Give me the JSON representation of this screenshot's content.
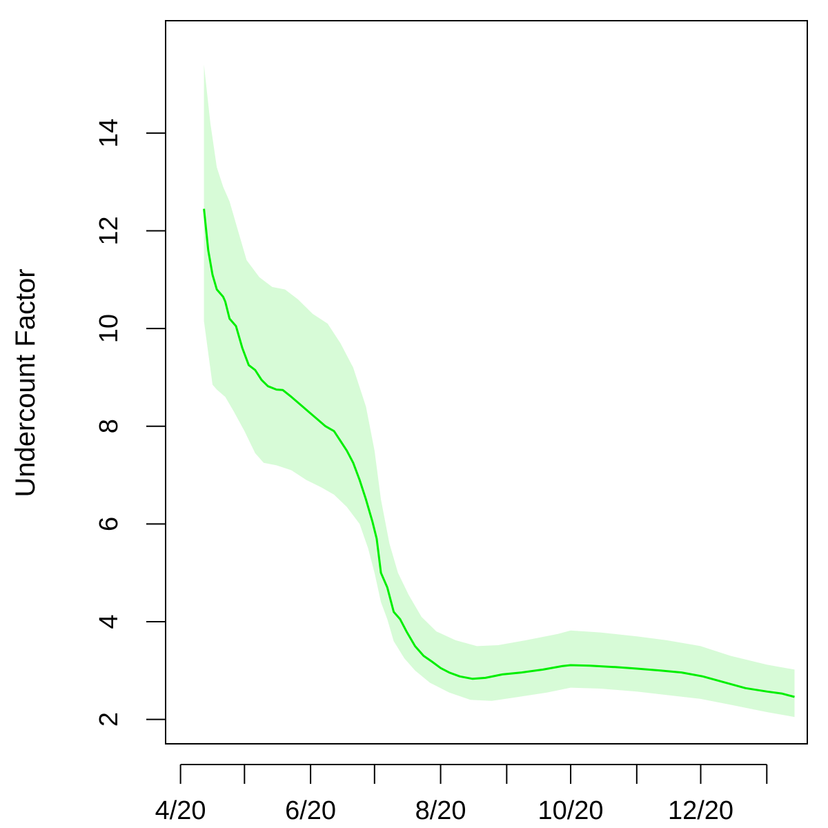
{
  "chart_data": {
    "type": "line",
    "title": "",
    "xlabel": "",
    "ylabel": "Undercount Factor",
    "ylim": [
      1.5,
      16.3
    ],
    "yticks": [
      2,
      4,
      6,
      8,
      10,
      12,
      14
    ],
    "ytick_labels": [
      "2",
      "4",
      "6",
      "8",
      "10",
      "12",
      "14"
    ],
    "xlim": [
      "2020-03-25",
      "2021-01-20"
    ],
    "xticks": [
      "2020-04-01",
      "2020-05-01",
      "2020-06-01",
      "2020-07-01",
      "2020-08-01",
      "2020-09-01",
      "2020-10-01",
      "2020-11-01",
      "2020-12-01",
      "2021-01-01"
    ],
    "xtick_labels": [
      "4/20",
      "",
      "6/20",
      "",
      "8/20",
      "",
      "10/20",
      "",
      "12/20",
      ""
    ],
    "grid": false,
    "legend": "none",
    "colors": {
      "line": "#00ee00",
      "band": "#d7fbd7"
    },
    "series": [
      {
        "values": [
          {
            "x": "2020-04-12",
            "y": 12.45
          },
          {
            "x": "2020-04-14",
            "y": 11.6
          },
          {
            "x": "2020-04-16",
            "y": 11.1
          },
          {
            "x": "2020-04-18",
            "y": 10.8
          },
          {
            "x": "2020-04-20",
            "y": 10.7
          },
          {
            "x": "2020-04-21",
            "y": 10.65
          },
          {
            "x": "2020-04-22",
            "y": 10.55
          },
          {
            "x": "2020-04-24",
            "y": 10.2
          },
          {
            "x": "2020-04-27",
            "y": 10.05
          },
          {
            "x": "2020-04-30",
            "y": 9.6
          },
          {
            "x": "2020-05-03",
            "y": 9.25
          },
          {
            "x": "2020-05-06",
            "y": 9.15
          },
          {
            "x": "2020-05-09",
            "y": 8.95
          },
          {
            "x": "2020-05-12",
            "y": 8.82
          },
          {
            "x": "2020-05-16",
            "y": 8.75
          },
          {
            "x": "2020-05-19",
            "y": 8.74
          },
          {
            "x": "2020-05-23",
            "y": 8.6
          },
          {
            "x": "2020-05-27",
            "y": 8.45
          },
          {
            "x": "2020-05-31",
            "y": 8.3
          },
          {
            "x": "2020-06-04",
            "y": 8.15
          },
          {
            "x": "2020-06-08",
            "y": 8.0
          },
          {
            "x": "2020-06-12",
            "y": 7.9
          },
          {
            "x": "2020-06-15",
            "y": 7.7
          },
          {
            "x": "2020-06-18",
            "y": 7.5
          },
          {
            "x": "2020-06-21",
            "y": 7.25
          },
          {
            "x": "2020-06-24",
            "y": 6.9
          },
          {
            "x": "2020-06-27",
            "y": 6.5
          },
          {
            "x": "2020-06-30",
            "y": 6.05
          },
          {
            "x": "2020-07-02",
            "y": 5.7
          },
          {
            "x": "2020-07-04",
            "y": 5.0
          },
          {
            "x": "2020-07-07",
            "y": 4.7
          },
          {
            "x": "2020-07-10",
            "y": 4.2
          },
          {
            "x": "2020-07-13",
            "y": 4.05
          },
          {
            "x": "2020-07-16",
            "y": 3.8
          },
          {
            "x": "2020-07-20",
            "y": 3.5
          },
          {
            "x": "2020-07-24",
            "y": 3.3
          },
          {
            "x": "2020-07-28",
            "y": 3.18
          },
          {
            "x": "2020-08-01",
            "y": 3.05
          },
          {
            "x": "2020-08-05",
            "y": 2.96
          },
          {
            "x": "2020-08-10",
            "y": 2.88
          },
          {
            "x": "2020-08-16",
            "y": 2.83
          },
          {
            "x": "2020-08-22",
            "y": 2.85
          },
          {
            "x": "2020-08-30",
            "y": 2.92
          },
          {
            "x": "2020-09-08",
            "y": 2.96
          },
          {
            "x": "2020-09-18",
            "y": 3.02
          },
          {
            "x": "2020-09-27",
            "y": 3.09
          },
          {
            "x": "2020-10-01",
            "y": 3.11
          },
          {
            "x": "2020-10-10",
            "y": 3.1
          },
          {
            "x": "2020-10-22",
            "y": 3.07
          },
          {
            "x": "2020-11-01",
            "y": 3.04
          },
          {
            "x": "2020-11-12",
            "y": 3.0
          },
          {
            "x": "2020-11-22",
            "y": 2.96
          },
          {
            "x": "2020-12-02",
            "y": 2.88
          },
          {
            "x": "2020-12-12",
            "y": 2.76
          },
          {
            "x": "2020-12-22",
            "y": 2.64
          },
          {
            "x": "2021-01-01",
            "y": 2.57
          },
          {
            "x": "2021-01-08",
            "y": 2.53
          },
          {
            "x": "2021-01-14",
            "y": 2.46
          }
        ],
        "lower": [
          {
            "x": "2020-04-12",
            "y": 10.15
          },
          {
            "x": "2020-04-14",
            "y": 9.5
          },
          {
            "x": "2020-04-16",
            "y": 8.85
          },
          {
            "x": "2020-04-18",
            "y": 8.75
          },
          {
            "x": "2020-04-22",
            "y": 8.6
          },
          {
            "x": "2020-04-26",
            "y": 8.3
          },
          {
            "x": "2020-05-01",
            "y": 7.9
          },
          {
            "x": "2020-05-06",
            "y": 7.45
          },
          {
            "x": "2020-05-10",
            "y": 7.25
          },
          {
            "x": "2020-05-16",
            "y": 7.2
          },
          {
            "x": "2020-05-23",
            "y": 7.1
          },
          {
            "x": "2020-05-30",
            "y": 6.9
          },
          {
            "x": "2020-06-06",
            "y": 6.75
          },
          {
            "x": "2020-06-12",
            "y": 6.6
          },
          {
            "x": "2020-06-18",
            "y": 6.35
          },
          {
            "x": "2020-06-24",
            "y": 6.0
          },
          {
            "x": "2020-06-28",
            "y": 5.5
          },
          {
            "x": "2020-07-01",
            "y": 5.0
          },
          {
            "x": "2020-07-04",
            "y": 4.4
          },
          {
            "x": "2020-07-07",
            "y": 4.05
          },
          {
            "x": "2020-07-10",
            "y": 3.6
          },
          {
            "x": "2020-07-15",
            "y": 3.25
          },
          {
            "x": "2020-07-20",
            "y": 3.0
          },
          {
            "x": "2020-07-27",
            "y": 2.75
          },
          {
            "x": "2020-08-05",
            "y": 2.55
          },
          {
            "x": "2020-08-15",
            "y": 2.4
          },
          {
            "x": "2020-08-25",
            "y": 2.38
          },
          {
            "x": "2020-09-05",
            "y": 2.45
          },
          {
            "x": "2020-09-20",
            "y": 2.55
          },
          {
            "x": "2020-10-01",
            "y": 2.65
          },
          {
            "x": "2020-10-15",
            "y": 2.63
          },
          {
            "x": "2020-11-01",
            "y": 2.57
          },
          {
            "x": "2020-11-15",
            "y": 2.5
          },
          {
            "x": "2020-12-01",
            "y": 2.42
          },
          {
            "x": "2020-12-15",
            "y": 2.3
          },
          {
            "x": "2021-01-01",
            "y": 2.15
          },
          {
            "x": "2021-01-14",
            "y": 2.05
          }
        ],
        "upper": [
          {
            "x": "2020-04-12",
            "y": 15.4
          },
          {
            "x": "2020-04-15",
            "y": 14.2
          },
          {
            "x": "2020-04-18",
            "y": 13.3
          },
          {
            "x": "2020-04-21",
            "y": 12.9
          },
          {
            "x": "2020-04-24",
            "y": 12.6
          },
          {
            "x": "2020-04-28",
            "y": 12.0
          },
          {
            "x": "2020-05-02",
            "y": 11.4
          },
          {
            "x": "2020-05-08",
            "y": 11.05
          },
          {
            "x": "2020-05-14",
            "y": 10.85
          },
          {
            "x": "2020-05-20",
            "y": 10.8
          },
          {
            "x": "2020-05-26",
            "y": 10.6
          },
          {
            "x": "2020-06-02",
            "y": 10.3
          },
          {
            "x": "2020-06-09",
            "y": 10.1
          },
          {
            "x": "2020-06-15",
            "y": 9.7
          },
          {
            "x": "2020-06-21",
            "y": 9.2
          },
          {
            "x": "2020-06-27",
            "y": 8.4
          },
          {
            "x": "2020-07-01",
            "y": 7.5
          },
          {
            "x": "2020-07-04",
            "y": 6.5
          },
          {
            "x": "2020-07-08",
            "y": 5.6
          },
          {
            "x": "2020-07-12",
            "y": 5.0
          },
          {
            "x": "2020-07-17",
            "y": 4.55
          },
          {
            "x": "2020-07-23",
            "y": 4.1
          },
          {
            "x": "2020-07-30",
            "y": 3.8
          },
          {
            "x": "2020-08-08",
            "y": 3.62
          },
          {
            "x": "2020-08-18",
            "y": 3.5
          },
          {
            "x": "2020-08-28",
            "y": 3.52
          },
          {
            "x": "2020-09-10",
            "y": 3.62
          },
          {
            "x": "2020-09-25",
            "y": 3.75
          },
          {
            "x": "2020-10-01",
            "y": 3.82
          },
          {
            "x": "2020-10-15",
            "y": 3.78
          },
          {
            "x": "2020-11-01",
            "y": 3.7
          },
          {
            "x": "2020-11-15",
            "y": 3.62
          },
          {
            "x": "2020-12-01",
            "y": 3.5
          },
          {
            "x": "2020-12-15",
            "y": 3.3
          },
          {
            "x": "2021-01-01",
            "y": 3.12
          },
          {
            "x": "2021-01-14",
            "y": 3.02
          }
        ]
      }
    ]
  }
}
